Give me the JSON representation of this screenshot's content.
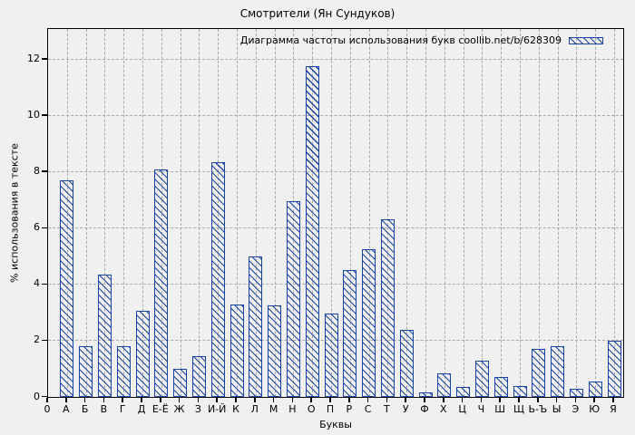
{
  "title": "Смотрители (Ян Сундуков)",
  "legend": {
    "label": "Диаграмма частоты использования букв coollib.net/b/628309"
  },
  "axes": {
    "ylabel": "% использования в тексте",
    "xlabel": "Буквы",
    "yticks": [
      0,
      2,
      4,
      6,
      8,
      10,
      12
    ]
  },
  "colors": {
    "bar": "#1745a5",
    "background": "#f0f0f0",
    "grid": "#a9a9a9"
  },
  "chart_data": {
    "type": "bar",
    "title": "Смотрители (Ян Сундуков)",
    "subtitle": "Диаграмма частоты использования букв coollib.net/b/628309",
    "xlabel": "Буквы",
    "ylabel": "% использования в тексте",
    "categories": [
      "0",
      "А",
      "Б",
      "В",
      "Г",
      "Д",
      "Е-Ё",
      "Ж",
      "З",
      "И-Й",
      "К",
      "Л",
      "М",
      "Н",
      "О",
      "П",
      "Р",
      "С",
      "Т",
      "У",
      "Ф",
      "Х",
      "Ц",
      "Ч",
      "Ш",
      "Щ",
      "Ь-Ъ",
      "Ы",
      "Э",
      "Ю",
      "Я"
    ],
    "values": [
      0,
      7.7,
      1.8,
      4.35,
      1.8,
      3.05,
      8.1,
      1.0,
      1.45,
      8.35,
      3.3,
      5.0,
      3.25,
      6.95,
      11.75,
      2.95,
      4.5,
      5.25,
      6.3,
      2.4,
      0.15,
      0.85,
      0.35,
      1.3,
      0.7,
      0.4,
      1.7,
      1.8,
      0.3,
      0.55,
      2.0
    ],
    "ylim": [
      0,
      13.05
    ],
    "grid": true,
    "legend_position": "top-right-inside",
    "bar_style": "hatched"
  }
}
